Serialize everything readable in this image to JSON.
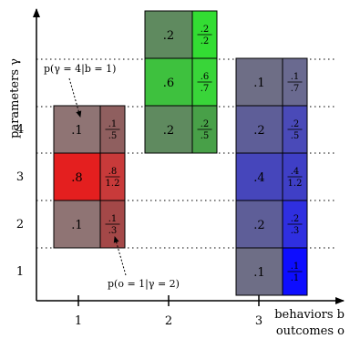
{
  "axes": {
    "y_label": "parameters γ",
    "x_label_line1": "behaviors b",
    "x_label_line2": "outcomes o",
    "y_ticks": [
      "1",
      "2",
      "3",
      "4"
    ],
    "x_ticks": [
      "1",
      "2",
      "3"
    ]
  },
  "annotations": {
    "top": "p(γ = 4|b = 1)",
    "bottom": "p(o = 1|γ = 2)"
  },
  "columns": [
    {
      "behavior": "1",
      "cells": [
        {
          "gamma": 4,
          "prob": ".1",
          "frac_num": ".1",
          "frac_den": ".5",
          "color": "#8f7474",
          "right_color": "#8f5f5f"
        },
        {
          "gamma": 3,
          "prob": ".8",
          "frac_num": ".8",
          "frac_den": "1.2",
          "color": "#e41f1f",
          "right_color": "#c83a3a"
        },
        {
          "gamma": 2,
          "prob": ".1",
          "frac_num": ".1",
          "frac_den": ".3",
          "color": "#8f7474",
          "right_color": "#a44848"
        }
      ]
    },
    {
      "behavior": "2",
      "cells": [
        {
          "gamma": 6,
          "prob": ".2",
          "frac_num": ".2",
          "frac_den": ".2",
          "color": "#5f8a5f",
          "right_color": "#33dd33"
        },
        {
          "gamma": 5,
          "prob": ".6",
          "frac_num": ".6",
          "frac_den": ".7",
          "color": "#3ec13e",
          "right_color": "#39d539"
        },
        {
          "gamma": 4,
          "prob": ".2",
          "frac_num": ".2",
          "frac_den": ".5",
          "color": "#5f8a5f",
          "right_color": "#48a048"
        }
      ]
    },
    {
      "behavior": "3",
      "cells": [
        {
          "gamma": 5,
          "prob": ".1",
          "frac_num": ".1",
          "frac_den": ".7",
          "color": "#6e6e86",
          "right_color": "#6a6a90"
        },
        {
          "gamma": 4,
          "prob": ".2",
          "frac_num": ".2",
          "frac_den": ".5",
          "color": "#5e5e98",
          "right_color": "#4a4ab8"
        },
        {
          "gamma": 3,
          "prob": ".4",
          "frac_num": ".4",
          "frac_den": "1.2",
          "color": "#4646bb",
          "right_color": "#3f3fc6"
        },
        {
          "gamma": 2,
          "prob": ".2",
          "frac_num": ".2",
          "frac_den": ".3",
          "color": "#5e5e98",
          "right_color": "#2f2fe0"
        },
        {
          "gamma": 1,
          "prob": ".1",
          "frac_num": ".1",
          "frac_den": ".1",
          "color": "#6e6e86",
          "right_color": "#0d0dff"
        }
      ]
    }
  ]
}
